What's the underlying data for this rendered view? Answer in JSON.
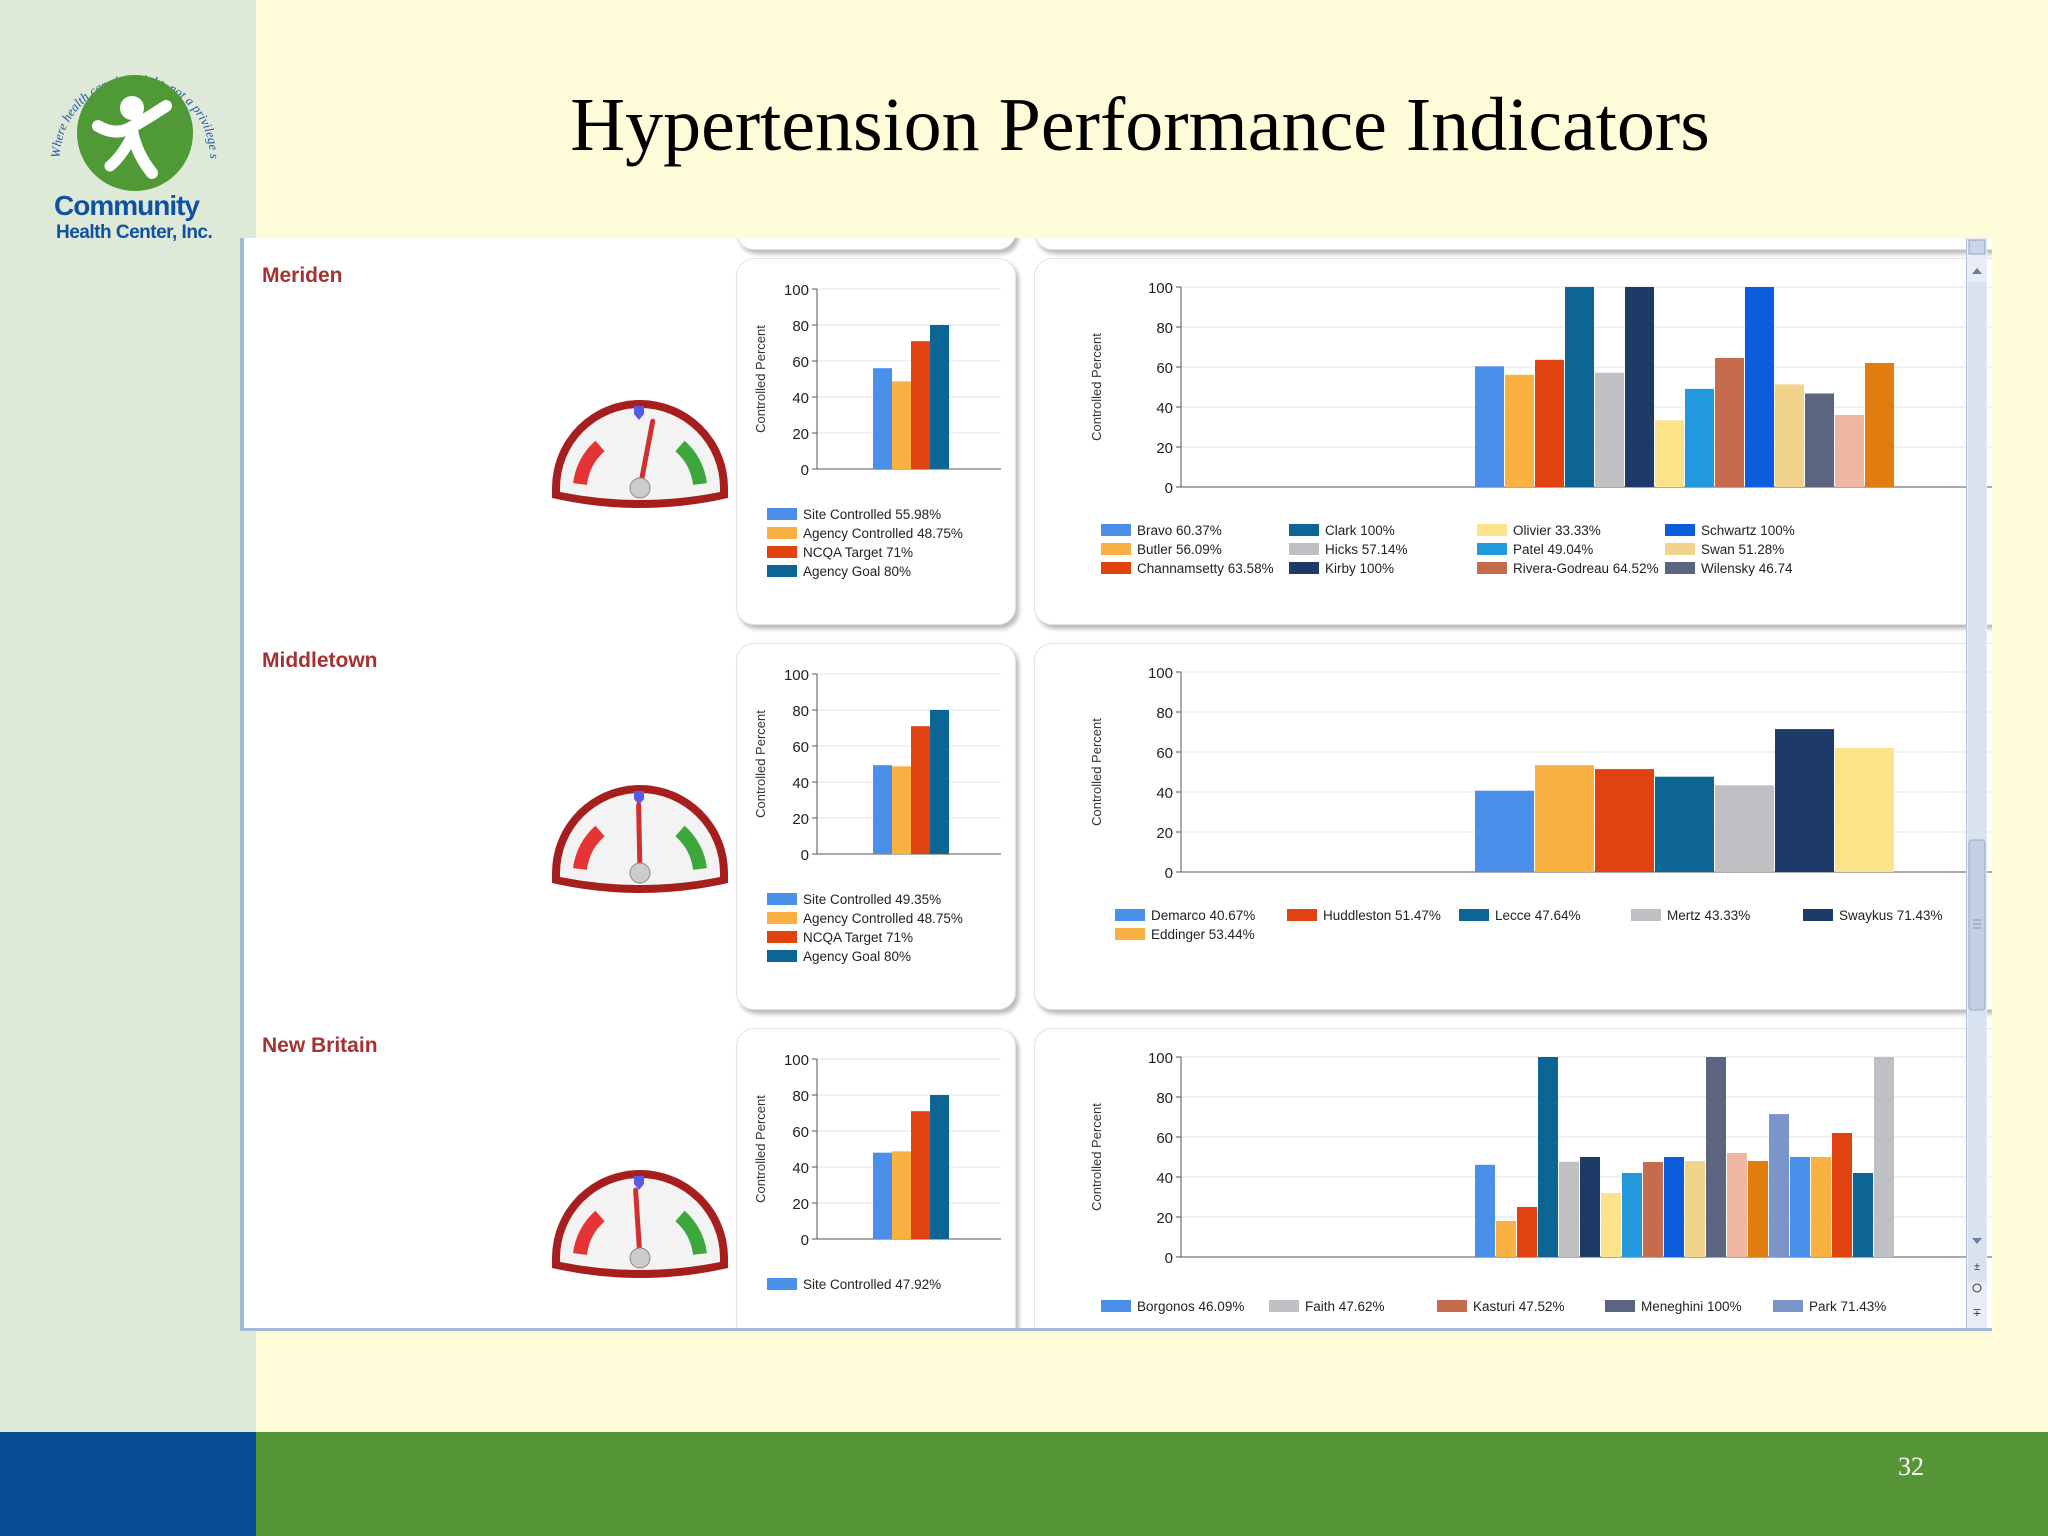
{
  "slide": {
    "title": "Hypertension Performance Indicators",
    "page_number": "32",
    "logo": {
      "tagline": "Where health care is a right, not a privilege since 1972",
      "name_line1": "Community",
      "name_line2": "Health Center, Inc."
    }
  },
  "colors": {
    "site": "#4A8FEA",
    "agency": "#F9B242",
    "ncqa": "#E04210",
    "goal": "#0C6592",
    "site_label": "#A53232",
    "bottom_green": "#559536",
    "bottom_blue": "#0A4C94"
  },
  "common": {
    "axis_label": "Controlled Percent",
    "y_ticks": [
      "0",
      "20",
      "40",
      "60",
      "80",
      "100"
    ]
  },
  "sites": [
    {
      "name": "Meriden",
      "summary_values": [
        55.98,
        48.75,
        71,
        80
      ],
      "summary_legend": [
        "Site Controlled 55.98%",
        "Agency Controlled 48.75%",
        "NCQA Target 71%",
        "Agency Goal 80%"
      ],
      "providers": [
        {
          "legend": "Bravo 60.37%",
          "value": 60.37,
          "color": "#4A8FEA"
        },
        {
          "legend": "Butler 56.09%",
          "value": 56.09,
          "color": "#F9B242"
        },
        {
          "legend": "Channamsetty 63.58%",
          "value": 63.58,
          "color": "#E04210"
        },
        {
          "legend": "Clark 100%",
          "value": 100,
          "color": "#0C6592"
        },
        {
          "legend": "Hicks 57.14%",
          "value": 57.14,
          "color": "#C0C0C4"
        },
        {
          "legend": "Kirby 100%",
          "value": 100,
          "color": "#1E3A68"
        },
        {
          "legend": "Olivier 33.33%",
          "value": 33.33,
          "color": "#FCE38A"
        },
        {
          "legend": "Patel 49.04%",
          "value": 49.04,
          "color": "#2399DD"
        },
        {
          "legend": "Rivera-Godreau 64.52%",
          "value": 64.52,
          "color": "#C66B4E"
        },
        {
          "legend": "Schwartz 100%",
          "value": 100,
          "color": "#0C5CDB"
        },
        {
          "legend": "Swan 51.28%",
          "value": 51.28,
          "color": "#F1D38C"
        },
        {
          "legend": "Wilensky 46.74",
          "value": 46.74,
          "color": "#5C6580"
        },
        {
          "legend": "",
          "value": 36,
          "color": "#F0B5A3"
        },
        {
          "legend": "",
          "value": 62,
          "color": "#E17D0E"
        }
      ]
    },
    {
      "name": "Middletown",
      "summary_values": [
        49.35,
        48.75,
        71,
        80
      ],
      "summary_legend": [
        "Site Controlled 49.35%",
        "Agency Controlled 48.75%",
        "NCQA Target 71%",
        "Agency Goal 80%"
      ],
      "providers": [
        {
          "legend": "Demarco 40.67%",
          "value": 40.67,
          "color": "#4A8FEA"
        },
        {
          "legend": "Eddinger 53.44%",
          "value": 53.44,
          "color": "#F9B242"
        },
        {
          "legend": "Huddleston 51.47%",
          "value": 51.47,
          "color": "#E04210"
        },
        {
          "legend": "Lecce 47.64%",
          "value": 47.64,
          "color": "#0C6592"
        },
        {
          "legend": "Mertz 43.33%",
          "value": 43.33,
          "color": "#C0C0C4"
        },
        {
          "legend": "Swaykus 71.43%",
          "value": 71.43,
          "color": "#1E3A68"
        },
        {
          "legend": "",
          "value": 62,
          "color": "#FCE38A"
        }
      ]
    },
    {
      "name": "New Britain",
      "summary_values": [
        47.92,
        48.75,
        71,
        80
      ],
      "summary_legend": [
        "Site Controlled 47.92%"
      ],
      "providers": [
        {
          "legend": "Borgonos 46.09%",
          "value": 46.09,
          "color": "#4A8FEA"
        },
        {
          "legend": "",
          "value": 18,
          "color": "#F9B242"
        },
        {
          "legend": "",
          "value": 25,
          "color": "#E04210"
        },
        {
          "legend": "",
          "value": 100,
          "color": "#0C6592"
        },
        {
          "legend": "Faith 47.62%",
          "value": 47.62,
          "color": "#C0C0C4"
        },
        {
          "legend": "",
          "value": 50,
          "color": "#1E3A68"
        },
        {
          "legend": "",
          "value": 32,
          "color": "#FCE38A"
        },
        {
          "legend": "",
          "value": 42,
          "color": "#2399DD"
        },
        {
          "legend": "Kasturi 47.52%",
          "value": 47.52,
          "color": "#C66B4E"
        },
        {
          "legend": "",
          "value": 50,
          "color": "#0C5CDB"
        },
        {
          "legend": "",
          "value": 48,
          "color": "#F1D38C"
        },
        {
          "legend": "Meneghini 100%",
          "value": 100,
          "color": "#5C6580"
        },
        {
          "legend": "",
          "value": 52,
          "color": "#F0B5A3"
        },
        {
          "legend": "",
          "value": 48,
          "color": "#E17D0E"
        },
        {
          "legend": "Park 71.43%",
          "value": 71.43,
          "color": "#7A95CA"
        },
        {
          "legend": "",
          "value": 50,
          "color": "#4A8FEA"
        },
        {
          "legend": "",
          "value": 50,
          "color": "#F9B242"
        },
        {
          "legend": "",
          "value": 62,
          "color": "#E04210"
        },
        {
          "legend": "",
          "value": 42,
          "color": "#0C6592"
        },
        {
          "legend": "",
          "value": 100,
          "color": "#C0C0C4"
        }
      ]
    }
  ]
}
